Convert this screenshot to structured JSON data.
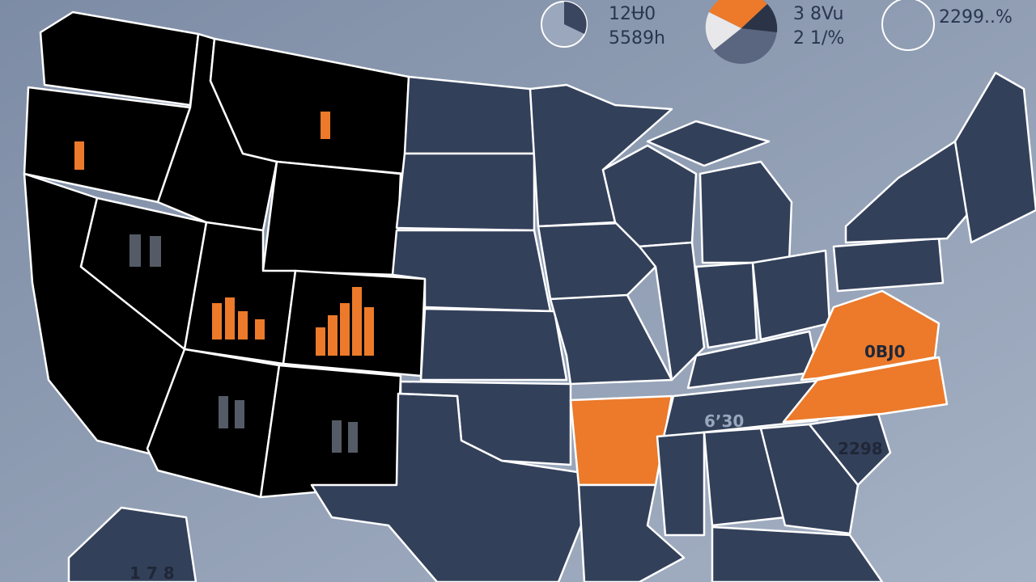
{
  "header": {
    "stats": [
      {
        "value": "12Ʉ0",
        "label": "5589h"
      },
      {
        "value": "3 8Vu",
        "label": "2 1/%"
      },
      {
        "value": "2299..%"
      }
    ]
  },
  "map": {
    "labels": [
      {
        "state": "virginia",
        "text": "0BJ0"
      },
      {
        "state": "south-carolina",
        "text": "2298"
      },
      {
        "state": "tennessee",
        "text": "6ʼ30"
      },
      {
        "state": "alaska",
        "text": "1 7 8"
      }
    ]
  }
}
